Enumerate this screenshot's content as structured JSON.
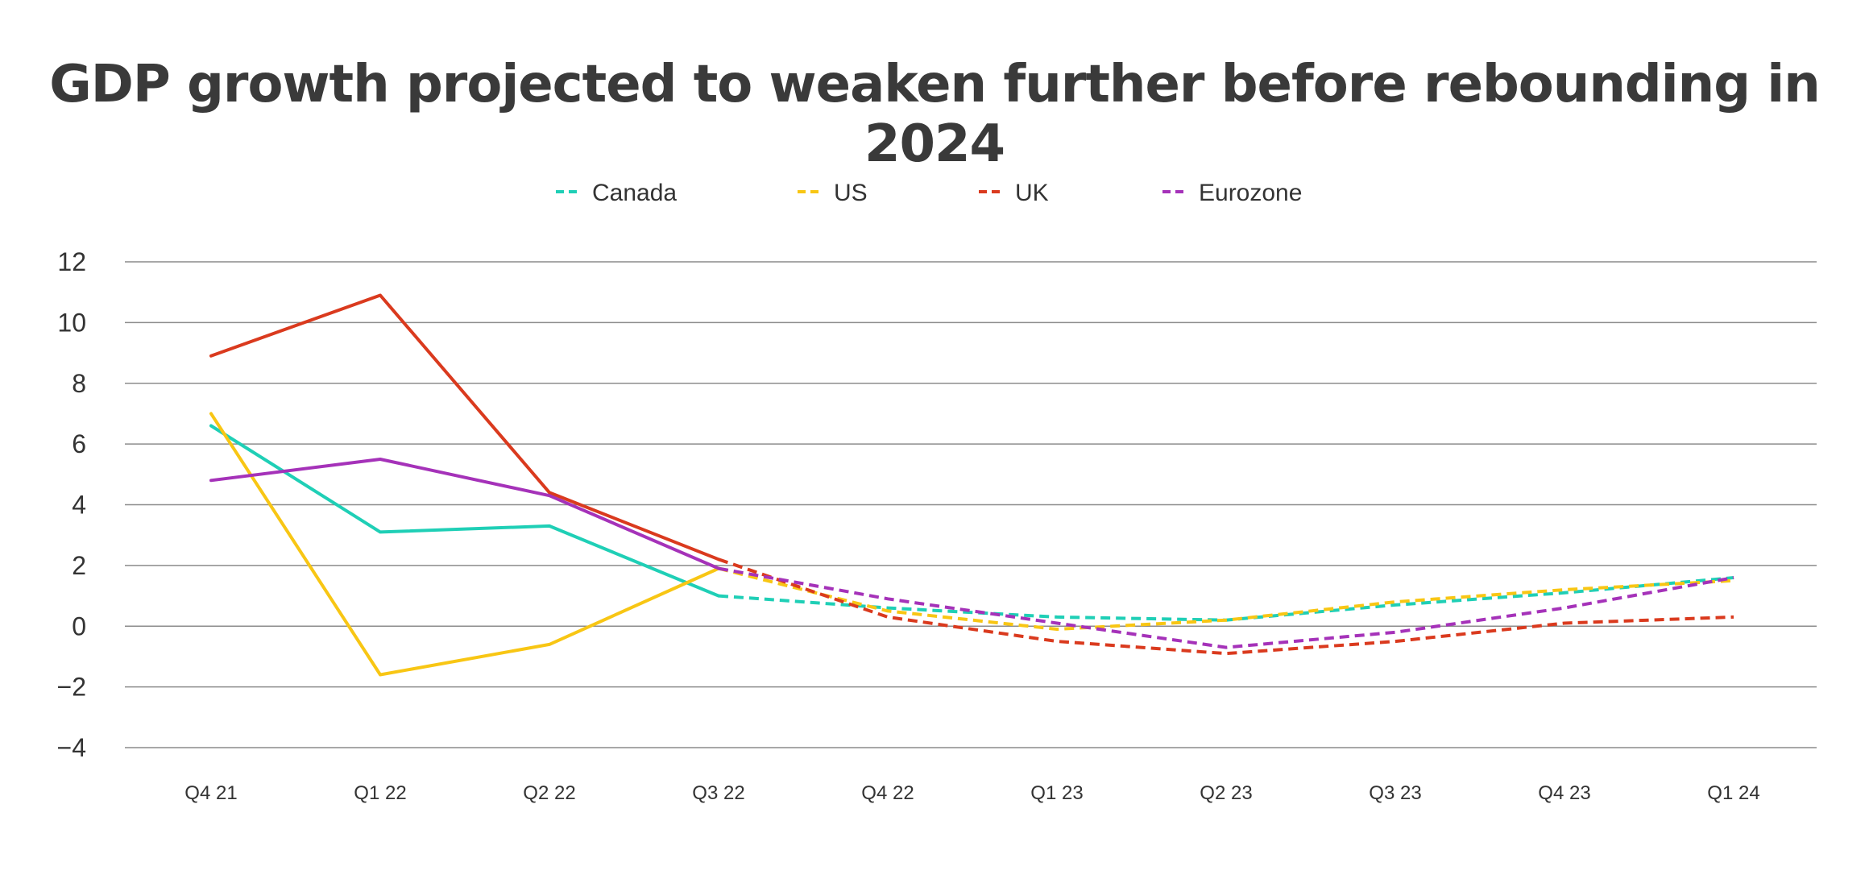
{
  "chart_data": {
    "type": "line",
    "title": "GDP growth projected to weaken further before rebounding in 2024",
    "xlabel": "",
    "ylabel": "",
    "categories": [
      "Q4 21",
      "Q1 22",
      "Q2 22",
      "Q3 22",
      "Q4 22",
      "Q1 23",
      "Q2 23",
      "Q3 23",
      "Q4 23",
      "Q1 24"
    ],
    "ylim": [
      -4,
      12
    ],
    "yticks": [
      "12",
      "10",
      "8",
      "6",
      "4",
      "2",
      "0",
      "−2",
      "−4"
    ],
    "ytick_values": [
      12,
      10,
      8,
      6,
      4,
      2,
      0,
      -2,
      -4
    ],
    "grid": true,
    "legend_position": "top-center",
    "actual_through_index": 3,
    "note": "Solid segments are actual values; dashed segments are projections.",
    "series": [
      {
        "name": "Canada",
        "color": "#1fcfb6",
        "values": [
          6.6,
          3.1,
          3.3,
          1.0,
          0.6,
          0.3,
          0.2,
          0.7,
          1.1,
          1.6
        ]
      },
      {
        "name": "US",
        "color": "#f8c614",
        "values": [
          7.0,
          -1.6,
          -0.6,
          1.9,
          0.5,
          -0.1,
          0.2,
          0.8,
          1.2,
          1.5
        ]
      },
      {
        "name": "UK",
        "color": "#da3a1e",
        "values": [
          8.9,
          10.9,
          4.4,
          2.2,
          0.3,
          -0.5,
          -0.9,
          -0.5,
          0.1,
          0.3
        ]
      },
      {
        "name": "Eurozone",
        "color": "#a532b9",
        "values": [
          4.8,
          5.5,
          4.3,
          1.9,
          0.9,
          0.1,
          -0.7,
          -0.2,
          0.6,
          1.6
        ]
      }
    ]
  }
}
